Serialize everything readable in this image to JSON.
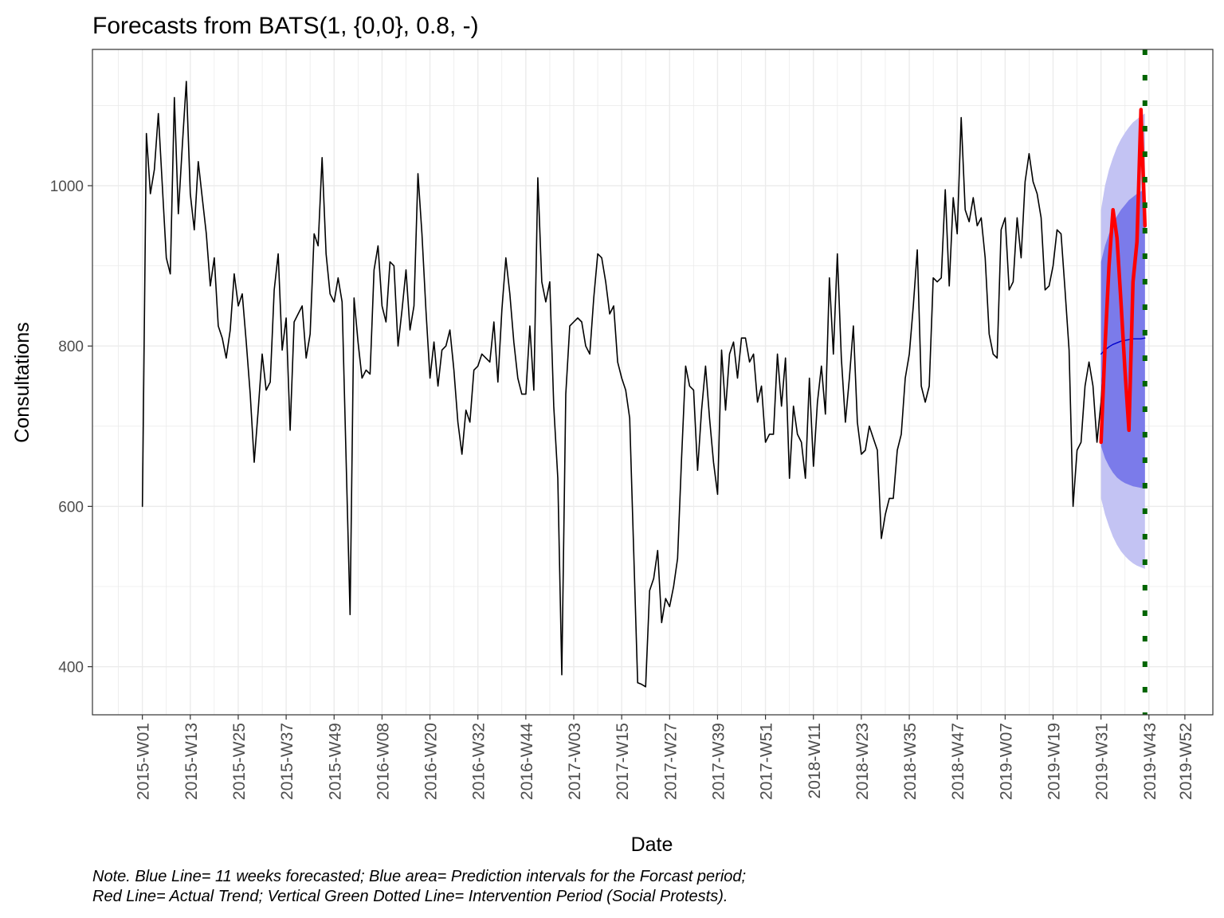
{
  "chart_data": {
    "type": "line",
    "title": "Forecasts from BATS(1, {0,0}, 0.8, -)",
    "xlabel": "Date",
    "ylabel": "Consultations",
    "y_ticks": [
      400,
      600,
      800,
      1000
    ],
    "ylim": [
      340,
      1170
    ],
    "x_ticks": [
      "2015-W01",
      "2015-W13",
      "2015-W25",
      "2015-W37",
      "2015-W49",
      "2016-W08",
      "2016-W20",
      "2016-W32",
      "2016-W44",
      "2017-W03",
      "2017-W15",
      "2017-W27",
      "2017-W39",
      "2017-W51",
      "2018-W11",
      "2018-W23",
      "2018-W35",
      "2018-W47",
      "2019-W07",
      "2019-W19",
      "2019-W31",
      "2019-W43",
      "2019-W52"
    ],
    "x_tick_index": [
      1,
      13,
      25,
      37,
      49,
      61,
      73,
      85,
      97,
      109,
      121,
      133,
      145,
      157,
      169,
      181,
      193,
      205,
      217,
      229,
      241,
      253,
      262
    ],
    "xlim": [
      -11.5,
      269
    ],
    "grid": true,
    "note": [
      "Note. Blue Line= 11 weeks forecasted; Blue area= Prediction intervals for the Forcast period;",
      "Red Line= Actual Trend; Vertical Green Dotted Line= Intervention Period (Social Protests)."
    ],
    "colors": {
      "observed": "#000000",
      "forecast": "#0000cc",
      "pi80": "#7b7bea",
      "pi95": "#c3c3f3",
      "actual": "#ff0000",
      "intervention": "#006400",
      "grid": "#ebebeb"
    },
    "intervention_week_index": 252,
    "series": [
      {
        "name": "Observed",
        "role": "observed",
        "x_start": 1,
        "values": [
          600,
          1065,
          990,
          1020,
          1090,
          1000,
          910,
          890,
          1110,
          965,
          1050,
          1130,
          990,
          945,
          1030,
          985,
          940,
          875,
          910,
          825,
          810,
          785,
          820,
          890,
          850,
          865,
          805,
          740,
          655,
          720,
          790,
          745,
          755,
          870,
          915,
          795,
          835,
          695,
          830,
          840,
          850,
          785,
          815,
          940,
          925,
          1035,
          915,
          865,
          855,
          885,
          855,
          660,
          465,
          860,
          805,
          760,
          770,
          765,
          895,
          925,
          850,
          830,
          905,
          900,
          800,
          845,
          895,
          820,
          850,
          1015,
          940,
          845,
          760,
          805,
          750,
          795,
          800,
          820,
          770,
          705,
          665,
          720,
          705,
          770,
          775,
          790,
          785,
          780,
          830,
          755,
          845,
          910,
          865,
          805,
          760,
          740,
          740,
          825,
          745,
          1010,
          880,
          855,
          880,
          725,
          635,
          390,
          740,
          825,
          830,
          835,
          830,
          800,
          790,
          860,
          915,
          910,
          880,
          840,
          850,
          780,
          760,
          745,
          710,
          545,
          380,
          378,
          375,
          495,
          510,
          545,
          455,
          485,
          475,
          500,
          535,
          660,
          775,
          750,
          745,
          645,
          720,
          775,
          710,
          655,
          615,
          795,
          720,
          790,
          805,
          760,
          810,
          810,
          780,
          790,
          730,
          750,
          680,
          690,
          690,
          790,
          725,
          785,
          635,
          725,
          690,
          680,
          635,
          760,
          650,
          730,
          775,
          715,
          885,
          790,
          915,
          785,
          705,
          760,
          825,
          705,
          665,
          670,
          700,
          685,
          670,
          560,
          590,
          610,
          610,
          670,
          690,
          760,
          790,
          850,
          920,
          750,
          730,
          750,
          885,
          880,
          885,
          995,
          875,
          985,
          940,
          1085,
          970,
          955,
          985,
          950,
          960,
          910,
          815,
          790,
          785,
          945,
          960,
          870,
          880,
          960,
          910,
          1005,
          1040,
          1005,
          990,
          960,
          870,
          875,
          900,
          945,
          940,
          870,
          795,
          600,
          670,
          680,
          750,
          780,
          750,
          680,
          730,
          805
        ]
      },
      {
        "name": "Forecast",
        "role": "forecast",
        "x_start": 241,
        "values": [
          790,
          795,
          799,
          802,
          804,
          806,
          807,
          808,
          809,
          809,
          809,
          810
        ]
      },
      {
        "name": "Actual",
        "role": "actual",
        "x_start": 241,
        "values": [
          680,
          800,
          900,
          970,
          935,
          855,
          770,
          695,
          880,
          930,
          1095,
          950
        ]
      }
    ],
    "intervals": [
      {
        "name": "80%",
        "x_start": 241,
        "lower": [
          675,
          660,
          650,
          642,
          636,
          632,
          629,
          627,
          625,
          624,
          623,
          622
        ],
        "upper": [
          905,
          925,
          940,
          952,
          962,
          970,
          976,
          982,
          986,
          990,
          993,
          995
        ]
      },
      {
        "name": "95%",
        "x_start": 241,
        "lower": [
          610,
          590,
          575,
          562,
          552,
          544,
          538,
          533,
          529,
          526,
          524,
          522
        ],
        "upper": [
          970,
          1000,
          1020,
          1035,
          1048,
          1058,
          1066,
          1073,
          1079,
          1083,
          1087,
          1090
        ]
      }
    ]
  }
}
